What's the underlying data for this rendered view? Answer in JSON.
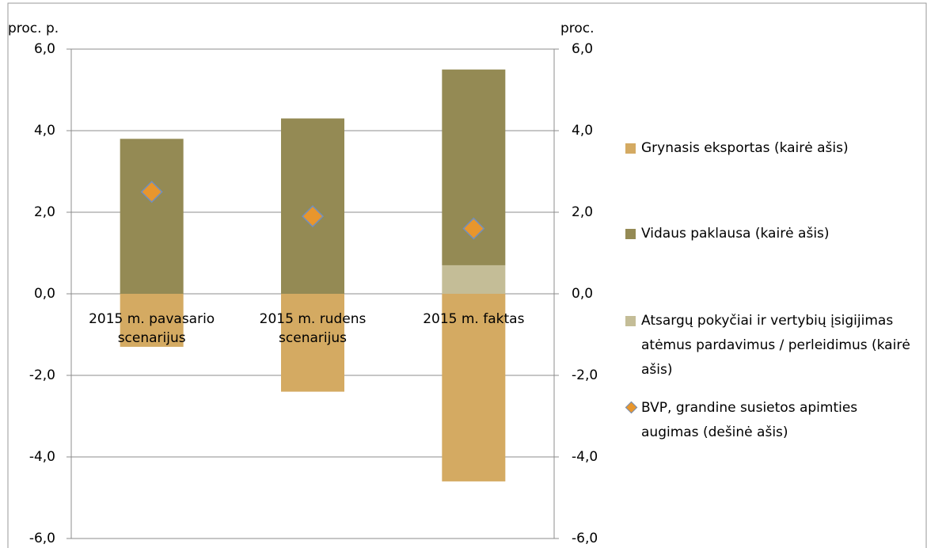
{
  "chart_data": {
    "type": "bar",
    "y_label": "proc. p.",
    "y2_label": "proc.",
    "categories": [
      "2015 m. pavasario scenarijus",
      "2015 m. rudens scenarijus",
      "2015 m. faktas"
    ],
    "series": [
      {
        "name": "Grynasis eksportas  (kairė ašis)",
        "color": "#d4aa62",
        "values": [
          -1.3,
          -2.4,
          -4.6
        ]
      },
      {
        "name": "Vidaus paklausa (kairė ašis)",
        "color": "#948a54",
        "values": [
          3.8,
          4.3,
          4.8
        ]
      },
      {
        "name": "Atsargų pokyčiai ir vertybių įsigijimas atėmus pardavimus / perleidimus (kairė ašis)",
        "color": "#c4bd97",
        "values": [
          0,
          0,
          0.7
        ]
      },
      {
        "name": "BVP, grandine susietos apimties augimas (dešinė ašis)",
        "color": "#e8962d",
        "type": "diamond",
        "axis": "y2",
        "values": [
          2.5,
          1.9,
          1.6
        ]
      }
    ],
    "ylim": [
      -6,
      6
    ],
    "yticks": [
      {
        "value": -6,
        "label": "-6,0"
      },
      {
        "value": -4,
        "label": "-4,0"
      },
      {
        "value": -2,
        "label": "-2,0"
      },
      {
        "value": 0,
        "label": "0,0"
      },
      {
        "value": 2,
        "label": "2,0"
      },
      {
        "value": 4,
        "label": "4,0"
      },
      {
        "value": 6,
        "label": "6,0"
      }
    ],
    "y2lim": [
      -6,
      6
    ],
    "y2ticks": [
      {
        "value": -6,
        "label": "-6,0"
      },
      {
        "value": -4,
        "label": "-4,0"
      },
      {
        "value": -2,
        "label": "-2,0"
      },
      {
        "value": 0,
        "label": "0,0"
      },
      {
        "value": 2,
        "label": "2,0"
      },
      {
        "value": 4,
        "label": "4,0"
      },
      {
        "value": 6,
        "label": "6,0"
      }
    ],
    "grid": true,
    "legend": "right"
  }
}
